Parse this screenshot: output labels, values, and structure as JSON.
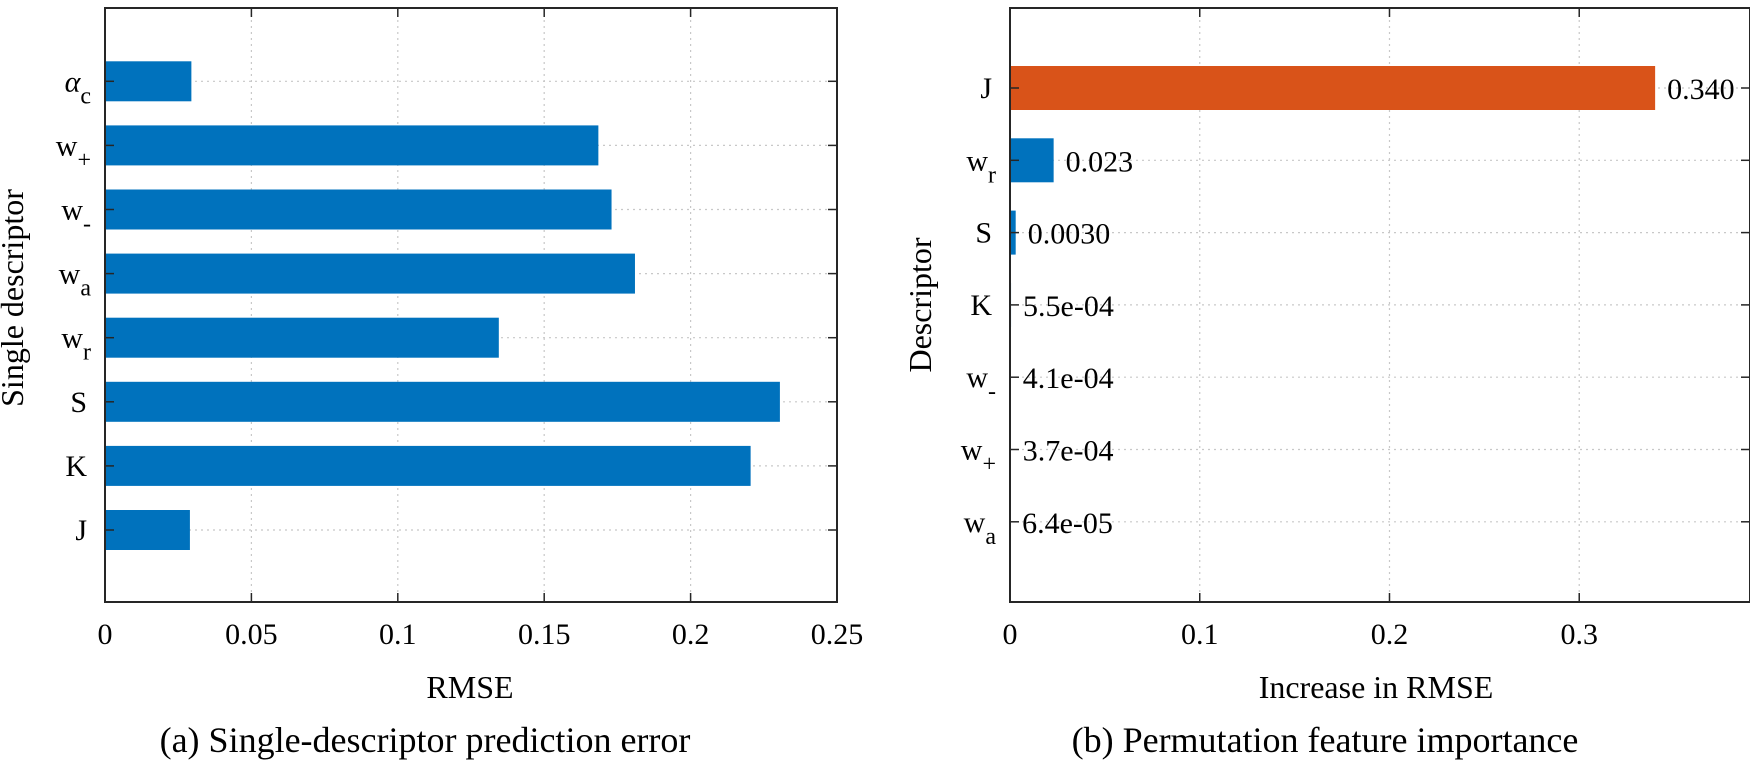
{
  "chart_data": [
    {
      "type": "bar",
      "orientation": "horizontal",
      "caption": "(a) Single-descriptor prediction error",
      "xlabel": "RMSE",
      "ylabel": "Single descriptor",
      "xlim": [
        0,
        0.25
      ],
      "xticks": [
        "0",
        "0.05",
        "0.1",
        "0.15",
        "0.2",
        "0.25"
      ],
      "xtick_values": [
        0,
        0.05,
        0.1,
        0.15,
        0.2,
        0.25
      ],
      "grid": true,
      "categories": [
        {
          "base": "J",
          "sub": ""
        },
        {
          "base": "K",
          "sub": ""
        },
        {
          "base": "S",
          "sub": ""
        },
        {
          "base": "w",
          "sub": "r"
        },
        {
          "base": "w",
          "sub": "a"
        },
        {
          "base": "w",
          "sub": "-"
        },
        {
          "base": "w",
          "sub": "+"
        },
        {
          "base": "α",
          "sub": "c"
        }
      ],
      "values": [
        0.029,
        0.2205,
        0.2305,
        0.1345,
        0.181,
        0.173,
        0.1685,
        0.0295
      ],
      "colors": [
        "#0072BD"
      ]
    },
    {
      "type": "bar",
      "orientation": "horizontal",
      "caption": "(b) Permutation feature importance",
      "xlabel": "Increase in RMSE",
      "ylabel": "Descriptor",
      "xlim": [
        0,
        0.39
      ],
      "xticks": [
        "0",
        "0.1",
        "0.2",
        "0.3"
      ],
      "xtick_values": [
        0,
        0.1,
        0.2,
        0.3
      ],
      "grid": true,
      "categories": [
        {
          "base": "J",
          "sub": ""
        },
        {
          "base": "w",
          "sub": "r"
        },
        {
          "base": "S",
          "sub": ""
        },
        {
          "base": "K",
          "sub": ""
        },
        {
          "base": "w",
          "sub": "-"
        },
        {
          "base": "w",
          "sub": "+"
        },
        {
          "base": "w",
          "sub": "a"
        }
      ],
      "values": [
        0.34,
        0.023,
        0.003,
        0.00055,
        0.00041,
        0.00037,
        6.4e-05
      ],
      "data_labels": [
        "0.340",
        "0.023",
        "0.0030",
        "5.5e-04",
        "4.1e-04",
        "3.7e-04",
        "6.4e-05"
      ],
      "colors": [
        "#D95319",
        "#0072BD",
        "#0072BD",
        "#0072BD",
        "#0072BD",
        "#0072BD",
        "#0072BD"
      ]
    }
  ]
}
